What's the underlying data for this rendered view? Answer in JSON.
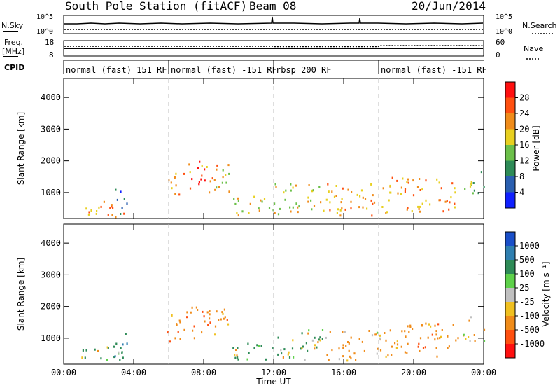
{
  "header": {
    "station": "South Pole Station (fitACF)",
    "beam": "Beam 08",
    "date": "20/Jun/2014"
  },
  "top_panel": {
    "left_label": "N.Sky",
    "right_label": "N.Search",
    "left_ticks": [
      "10^5",
      "10^0"
    ],
    "right_ticks": [
      "10^5",
      "10^0"
    ],
    "freq_label_line1": "Freq.",
    "freq_label_line2": "[MHz]",
    "freq_ticks": [
      "18",
      "8"
    ],
    "nave_label": "Nave",
    "nave_ticks": [
      "60",
      "0"
    ],
    "cpid_label": "CPID"
  },
  "cpid_modes": [
    {
      "label": "normal (fast) 151 RF",
      "start_hour": 0,
      "end_hour": 6
    },
    {
      "label": "normal (fast) -151 RF",
      "start_hour": 6,
      "end_hour": 12
    },
    {
      "label": "rbsp 200 RF",
      "start_hour": 12,
      "end_hour": 18
    },
    {
      "label": "normal (fast) -151 RF",
      "start_hour": 18,
      "end_hour": 24
    }
  ],
  "x_axis": {
    "label": "Time UT",
    "ticks": [
      "00:00",
      "04:00",
      "08:00",
      "12:00",
      "16:00",
      "20:00",
      "00:00"
    ],
    "tick_hours": [
      0,
      4,
      8,
      12,
      16,
      20,
      24
    ],
    "range_hours": [
      0,
      24
    ],
    "dashed_guides_hours": [
      6,
      12,
      18
    ]
  },
  "panels": [
    {
      "id": "power",
      "ylabel": "Slant Range [km]",
      "y_ticks": [
        "1000",
        "2000",
        "3000",
        "4000"
      ],
      "y_tick_values": [
        1000,
        2000,
        3000,
        4000
      ],
      "ylim": [
        180,
        4600
      ],
      "colorbar": {
        "title": "Power [dB]",
        "tick_labels": [
          "4",
          "8",
          "12",
          "16",
          "20",
          "24",
          "28"
        ],
        "colors": [
          "#1020ff",
          "#2a5fb0",
          "#2e8b57",
          "#6cc04a",
          "#e8d020",
          "#f08c1a",
          "#ff5010",
          "#ff1010"
        ]
      }
    },
    {
      "id": "velocity",
      "ylabel": "Slant Range [km]",
      "y_ticks": [
        "1000",
        "2000",
        "3000",
        "4000"
      ],
      "y_tick_values": [
        1000,
        2000,
        3000,
        4000
      ],
      "ylim": [
        180,
        4600
      ],
      "colorbar": {
        "title": "Velocity [m s⁻¹]",
        "tick_labels": [
          "1000",
          "500",
          "100",
          "25",
          "-25",
          "-100",
          "-500",
          "-1000"
        ],
        "colors": [
          "#1a4fc8",
          "#2f7fb0",
          "#2e8b57",
          "#5ed14a",
          "#c0c0c0",
          "#f0c020",
          "#f08c1a",
          "#ff5010",
          "#ff1010"
        ]
      }
    }
  ],
  "chart_data": {
    "type": "heatmap",
    "title": "South Pole Station (fitACF)",
    "xlabel": "Time UT",
    "ylabel": "Slant Range [km]",
    "x_range_hours": [
      0,
      24
    ],
    "y_range_km": [
      180,
      4600
    ],
    "scatter_regions": [
      {
        "t0": 0.6,
        "t1": 3.5,
        "r0": 250,
        "r1": 820,
        "power_db": 22,
        "velocity": 100
      },
      {
        "t0": 2.9,
        "t1": 3.6,
        "r0": 300,
        "r1": 1200,
        "power_db": 6,
        "velocity": 500
      },
      {
        "t0": 5.9,
        "t1": 7.0,
        "r0": 900,
        "r1": 1800,
        "power_db": 22,
        "velocity": -300
      },
      {
        "t0": 7.0,
        "t1": 8.8,
        "r0": 1000,
        "r1": 2000,
        "power_db": 24,
        "velocity": -400
      },
      {
        "t0": 8.5,
        "t1": 9.5,
        "r0": 1000,
        "r1": 2000,
        "power_db": 18,
        "velocity": -300
      },
      {
        "t0": 9.6,
        "t1": 12.0,
        "r0": 250,
        "r1": 900,
        "power_db": 18,
        "velocity": 100
      },
      {
        "t0": 12.0,
        "t1": 15.0,
        "r0": 300,
        "r1": 1300,
        "power_db": 18,
        "velocity": 100
      },
      {
        "t0": 15.0,
        "t1": 18.5,
        "r0": 300,
        "r1": 1300,
        "power_db": 22,
        "velocity": -200
      },
      {
        "t0": 18.5,
        "t1": 22.6,
        "r0": 400,
        "r1": 1500,
        "power_db": 22,
        "velocity": -300
      },
      {
        "t0": 22.8,
        "t1": 24.0,
        "r0": 900,
        "r1": 1700,
        "power_db": 14,
        "velocity": -150
      }
    ]
  }
}
